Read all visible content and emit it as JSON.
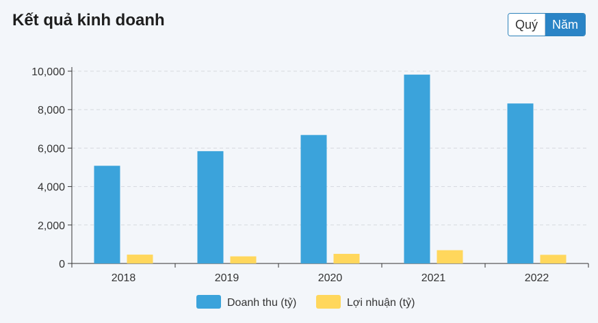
{
  "header": {
    "title": "Kết quả kinh doanh",
    "toggle": {
      "quarter_label": "Quý",
      "year_label": "Năm",
      "selected": "Năm"
    }
  },
  "colors": {
    "revenue": "#3ba3db",
    "profit": "#ffd75c",
    "active_button": "#2a84c6"
  },
  "chart_data": {
    "type": "bar",
    "categories": [
      "2018",
      "2019",
      "2020",
      "2021",
      "2022"
    ],
    "series": [
      {
        "name": "Doanh thu (tỷ)",
        "values": [
          5080,
          5840,
          6680,
          9820,
          8320
        ]
      },
      {
        "name": "Lợi nhuận (tỷ)",
        "values": [
          460,
          370,
          500,
          690,
          450
        ]
      }
    ],
    "ylim": [
      0,
      10000
    ],
    "yticks": [
      0,
      2000,
      4000,
      6000,
      8000,
      10000
    ],
    "ytick_labels": [
      "0",
      "2,000",
      "4,000",
      "6,000",
      "8,000",
      "10,000"
    ],
    "grid": true,
    "legend_position": "bottom"
  }
}
